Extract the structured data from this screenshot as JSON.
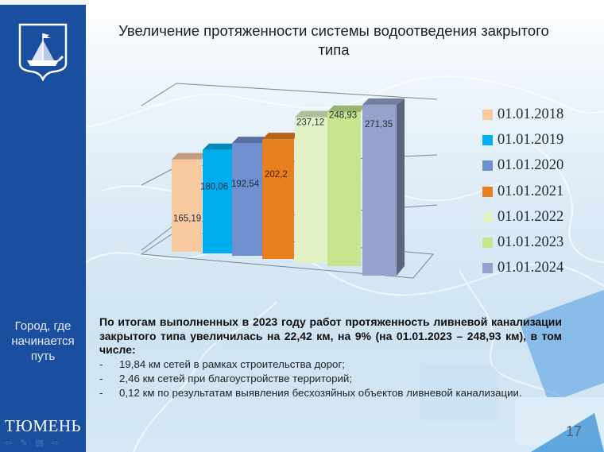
{
  "sidebar": {
    "slogan_lines": [
      "Город, где",
      "начинается",
      "путь"
    ],
    "brand": "ТЮМЕНЬ",
    "nav_icons": [
      "arrow-left-icon",
      "pen-icon",
      "menu-icon",
      "arrow-right-icon"
    ]
  },
  "slide": {
    "title_line1": "Увеличение протяженности системы водоотведения закрытого",
    "title_line2": "типа",
    "page_number": "17",
    "summary": "По итогам выполненных в 2023 году работ протяженность ливневой канализации закрытого типа увеличилась на 22,42 км, на 9% (на 01.01.2023 – 248,93 км), в том числе:",
    "bullets": [
      {
        "dash": "-",
        "text": "19,84 км сетей в рамках строительства дорог;"
      },
      {
        "dash": "-",
        "text": "2,46 км сетей при благоустройстве территорий;"
      },
      {
        "dash": "-",
        "text": "0,12 км по результатам выявления бесхозяйных объектов ливневой канализации."
      }
    ]
  },
  "chart_data": {
    "type": "bar",
    "title": "Увеличение протяженности системы водоотведения закрытого типа",
    "xlabel": "",
    "ylabel": "",
    "unit": "км",
    "categories": [
      "01.01.2018",
      "01.01.2019",
      "01.01.2020",
      "01.01.2021",
      "01.01.2022",
      "01.01.2023",
      "01.01.2024"
    ],
    "values": [
      165.19,
      180.06,
      192.54,
      202.2,
      237.12,
      248.93,
      271.35
    ],
    "data_labels": [
      "165,19",
      "180,06",
      "192,54",
      "202,2",
      "237,12",
      "248,93",
      "271,35"
    ],
    "colors": [
      "#f9c9a0",
      "#00aeef",
      "#6f8fce",
      "#e8801f",
      "#e3f2c4",
      "#c6e58c",
      "#95a3cc"
    ],
    "style": "3d-column",
    "grid": true,
    "legend_position": "right",
    "legend": [
      {
        "label": "01.01.2018",
        "color": "#f9c9a0"
      },
      {
        "label": "01.01.2019",
        "color": "#00aeef"
      },
      {
        "label": "01.01.2020",
        "color": "#6f8fce"
      },
      {
        "label": "01.01.2021",
        "color": "#e8801f"
      },
      {
        "label": "01.01.2022",
        "color": "#e3f2c4"
      },
      {
        "label": "01.01.2023",
        "color": "#c6e58c"
      },
      {
        "label": "01.01.2024",
        "color": "#95a3cc"
      }
    ]
  }
}
